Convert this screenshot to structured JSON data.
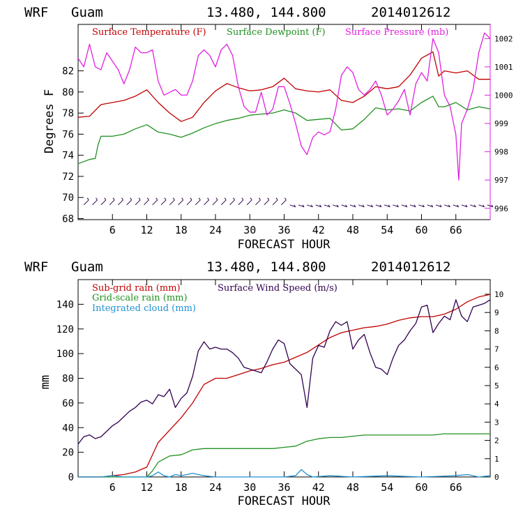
{
  "charts": [
    {
      "header": {
        "model": "WRF",
        "station": "Guam",
        "coords": "13.480, 144.800",
        "init": "2014012612"
      },
      "xlabel": "FORECAST HOUR",
      "ylabel_left": "Degrees F",
      "legend": [
        {
          "name": "Surface Temperature (F)",
          "color": "#c00000"
        },
        {
          "name": "Surface Dewpoint (F)",
          "color": "#209020"
        },
        {
          "name": "Surface Pressure (mb)",
          "color": "#e020e0"
        }
      ]
    },
    {
      "header": {
        "model": "WRF",
        "station": "Guam",
        "coords": "13.480, 144.800",
        "init": "2014012612"
      },
      "xlabel": "FORECAST HOUR",
      "ylabel_left": "mm",
      "legend": [
        {
          "name": "Sub-grid rain (mm)",
          "color": "#c00000"
        },
        {
          "name": "Grid-scale rain (mm)",
          "color": "#209020"
        },
        {
          "name": "Integrated cloud (mm)",
          "color": "#2090d0"
        },
        {
          "name": "Surface Wind Speed (m/s)",
          "color": "#300050"
        }
      ]
    }
  ],
  "chart_data": [
    {
      "type": "line",
      "x_ticks": [
        6,
        12,
        18,
        24,
        30,
        36,
        42,
        48,
        54,
        60,
        66
      ],
      "xlim": [
        0,
        72
      ],
      "y_left": {
        "ticks": [
          68,
          70,
          72,
          74,
          76,
          78,
          80,
          82
        ],
        "lim": [
          67.9,
          86.4
        ]
      },
      "y_right": {
        "ticks": [
          996,
          997,
          998,
          999,
          1000,
          1001,
          1002
        ],
        "lim": [
          995.6,
          1002.5
        ]
      },
      "series": [
        {
          "name": "Surface Temperature (F)",
          "axis": "left",
          "color": "#c00000",
          "x": [
            0,
            2,
            4,
            6,
            8,
            10,
            12,
            14,
            16,
            18,
            20,
            22,
            24,
            26,
            28,
            30,
            32,
            34,
            36,
            38,
            40,
            42,
            44,
            46,
            48,
            50,
            52,
            54,
            56,
            58,
            60,
            62,
            63,
            64,
            66,
            68,
            70,
            72
          ],
          "y": [
            77.6,
            77.7,
            78.8,
            79.0,
            79.2,
            79.6,
            80.2,
            79.0,
            78.0,
            77.2,
            77.6,
            79.0,
            80.1,
            80.8,
            80.4,
            80.1,
            80.2,
            80.5,
            81.3,
            80.3,
            80.1,
            80.0,
            80.2,
            79.2,
            79.0,
            79.6,
            80.5,
            80.3,
            80.5,
            81.6,
            83.2,
            83.8,
            81.5,
            82.0,
            81.8,
            82.0,
            81.2,
            81.2
          ]
        },
        {
          "name": "Surface Dewpoint (F)",
          "axis": "left",
          "color": "#209020",
          "x": [
            0,
            2,
            3,
            3.5,
            4,
            6,
            8,
            10,
            12,
            14,
            16,
            18,
            20,
            22,
            24,
            26,
            28,
            30,
            32,
            34,
            36,
            38,
            40,
            42,
            44,
            46,
            48,
            50,
            52,
            54,
            56,
            58,
            60,
            62,
            63,
            64,
            66,
            68,
            70,
            72
          ],
          "y": [
            73.2,
            73.6,
            73.7,
            75.0,
            75.8,
            75.8,
            76.0,
            76.5,
            76.9,
            76.2,
            76.0,
            75.7,
            76.1,
            76.6,
            77.0,
            77.3,
            77.5,
            77.8,
            77.9,
            78.0,
            78.3,
            78.0,
            77.3,
            77.4,
            77.5,
            76.4,
            76.5,
            77.4,
            78.5,
            78.3,
            78.4,
            78.2,
            79.0,
            79.6,
            78.6,
            78.6,
            79.0,
            78.3,
            78.6,
            78.4
          ]
        },
        {
          "name": "Surface Pressure (mb)",
          "axis": "right",
          "color": "#e020e0",
          "x": [
            0,
            1,
            2,
            3,
            4,
            5,
            6,
            7,
            8,
            9,
            10,
            11,
            12,
            13,
            14,
            15,
            16,
            17,
            18,
            19,
            20,
            21,
            22,
            23,
            24,
            25,
            26,
            27,
            28,
            29,
            30,
            31,
            32,
            33,
            34,
            35,
            36,
            37,
            38,
            39,
            40,
            41,
            42,
            43,
            44,
            45,
            46,
            47,
            48,
            49,
            50,
            51,
            52,
            53,
            54,
            55,
            56,
            57,
            58,
            59,
            60,
            61,
            62,
            63,
            64,
            65,
            66,
            66.5,
            67,
            68,
            69,
            70,
            71,
            72
          ],
          "y": [
            1001.3,
            1001.0,
            1001.8,
            1001.0,
            1000.9,
            1001.5,
            1001.2,
            1000.9,
            1000.4,
            1000.9,
            1001.7,
            1001.5,
            1001.5,
            1001.6,
            1000.5,
            1000.0,
            1000.1,
            1000.2,
            1000.0,
            1000.0,
            1000.5,
            1001.4,
            1001.6,
            1001.4,
            1001.0,
            1001.6,
            1001.8,
            1001.4,
            1000.3,
            999.6,
            999.4,
            999.4,
            1000.1,
            999.3,
            999.5,
            1000.3,
            1000.3,
            999.7,
            999.0,
            998.2,
            997.9,
            998.5,
            998.7,
            998.6,
            998.7,
            999.5,
            1000.7,
            1001.0,
            1000.8,
            1000.2,
            1000.0,
            1000.2,
            1000.5,
            1000.0,
            999.3,
            999.5,
            999.8,
            1000.2,
            999.3,
            1000.4,
            1000.8,
            1000.5,
            1002.0,
            1001.5,
            1000.0,
            999.6,
            998.6,
            997.0,
            999.0,
            999.5,
            1000.2,
            1001.5,
            1002.2,
            1002.0
          ]
        }
      ],
      "wind_barbs": {
        "color": "#300050",
        "level_left_axis": 69.3,
        "x_start": 1,
        "x_end": 72,
        "step": 1.5,
        "slant_change_hour": 36
      }
    },
    {
      "type": "line",
      "x_ticks": [
        6,
        12,
        18,
        24,
        30,
        36,
        42,
        48,
        54,
        60,
        66
      ],
      "xlim": [
        0,
        72
      ],
      "y_left": {
        "ticks": [
          0,
          20,
          40,
          60,
          80,
          100,
          120,
          140
        ],
        "lim": [
          0,
          160
        ]
      },
      "y_right": {
        "ticks": [
          0,
          1,
          2,
          3,
          4,
          5,
          6,
          7,
          8,
          9,
          10
        ],
        "lim": [
          0,
          10.8
        ]
      },
      "series": [
        {
          "name": "Sub-grid rain (mm)",
          "axis": "left",
          "color": "#c00000",
          "x": [
            0,
            4,
            6,
            8,
            10,
            12,
            14,
            16,
            18,
            20,
            22,
            24,
            26,
            28,
            30,
            32,
            34,
            36,
            38,
            40,
            42,
            44,
            46,
            48,
            50,
            52,
            54,
            56,
            58,
            60,
            62,
            64,
            66,
            68,
            70,
            72
          ],
          "y": [
            0,
            0,
            1,
            2,
            4,
            8,
            28,
            38,
            48,
            60,
            75,
            80,
            80,
            83,
            86,
            88,
            91,
            93,
            97,
            101,
            107,
            113,
            117,
            119,
            121,
            122,
            124,
            127,
            129,
            130,
            130,
            132,
            136,
            142,
            146,
            148
          ]
        },
        {
          "name": "Grid-scale rain (mm)",
          "axis": "left",
          "color": "#209020",
          "x": [
            0,
            12,
            13,
            14,
            16,
            18,
            20,
            22,
            24,
            26,
            28,
            30,
            32,
            34,
            36,
            38,
            40,
            42,
            44,
            46,
            48,
            50,
            52,
            54,
            56,
            58,
            60,
            62,
            64,
            66,
            68,
            70,
            72
          ],
          "y": [
            0,
            0,
            5,
            12,
            17,
            18,
            22,
            23,
            23,
            23,
            23,
            23,
            23,
            23,
            24,
            25,
            29,
            31,
            32,
            32,
            33,
            34,
            34,
            34,
            34,
            34,
            34,
            34,
            35,
            35,
            35,
            35,
            35
          ]
        },
        {
          "name": "Integrated cloud (mm)",
          "axis": "left",
          "color": "#2090d0",
          "x": [
            0,
            4,
            6,
            8,
            10,
            12,
            13,
            14,
            15,
            16,
            17,
            18,
            20,
            22,
            24,
            30,
            36,
            38,
            39,
            40,
            41,
            44,
            48,
            54,
            60,
            66,
            68,
            70,
            72
          ],
          "y": [
            0,
            0,
            1,
            0,
            0,
            0,
            1,
            4,
            1,
            0,
            2,
            1,
            3,
            1,
            0,
            0,
            0,
            1,
            6,
            2,
            0,
            1,
            0,
            1,
            0,
            1,
            2,
            0,
            1
          ]
        },
        {
          "name": "Surface Wind Speed (m/s)",
          "axis": "right",
          "color": "#300050",
          "x": [
            0,
            1,
            2,
            3,
            4,
            5,
            6,
            7,
            8,
            9,
            10,
            11,
            12,
            13,
            14,
            15,
            16,
            17,
            18,
            19,
            20,
            21,
            22,
            23,
            24,
            25,
            26,
            27,
            28,
            29,
            30,
            31,
            32,
            33,
            34,
            35,
            36,
            37,
            38,
            39,
            40,
            41,
            42,
            43,
            44,
            45,
            46,
            47,
            48,
            49,
            50,
            51,
            52,
            53,
            54,
            55,
            56,
            57,
            58,
            59,
            60,
            61,
            62,
            63,
            64,
            65,
            66,
            67,
            68,
            69,
            70,
            71,
            72
          ],
          "y": [
            1.8,
            2.2,
            2.3,
            2.1,
            2.2,
            2.5,
            2.8,
            3.0,
            3.3,
            3.6,
            3.8,
            4.1,
            4.2,
            4.0,
            4.5,
            4.4,
            4.8,
            3.8,
            4.3,
            4.6,
            5.5,
            6.9,
            7.4,
            7.0,
            7.1,
            7.0,
            7.0,
            6.8,
            6.5,
            6.0,
            5.9,
            5.8,
            5.7,
            6.3,
            7.0,
            7.5,
            7.3,
            6.2,
            5.9,
            5.6,
            3.8,
            6.5,
            7.2,
            7.1,
            8.0,
            8.5,
            8.3,
            8.5,
            7.0,
            7.5,
            7.8,
            6.8,
            6.0,
            5.9,
            5.6,
            6.5,
            7.2,
            7.5,
            8.0,
            8.4,
            9.3,
            9.4,
            7.9,
            8.4,
            8.8,
            8.6,
            9.7,
            8.8,
            8.5,
            9.3,
            9.4,
            9.5,
            9.7
          ]
        }
      ]
    }
  ]
}
